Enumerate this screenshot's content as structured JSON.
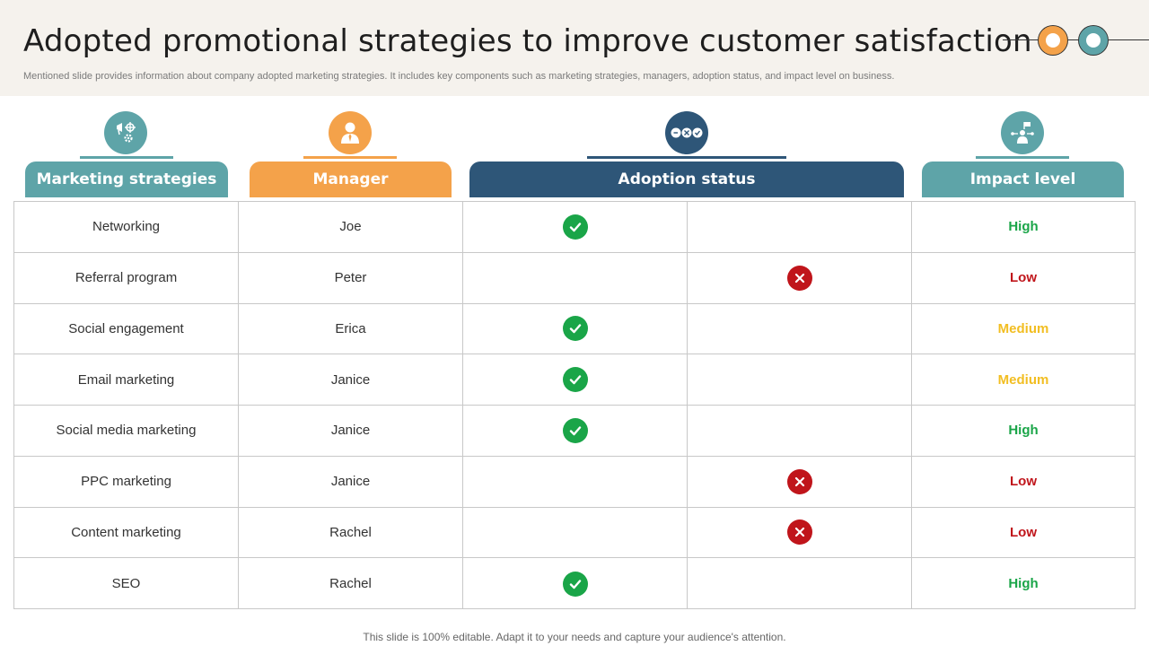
{
  "title": "Adopted promotional strategies to improve customer satisfaction",
  "subtitle": "Mentioned slide provides information about company adopted marketing strategies. It includes key components such as marketing strategies, managers, adoption status, and impact level on business.",
  "columns": {
    "strategies": "Marketing strategies",
    "manager": "Manager",
    "adoption": "Adoption status",
    "impact": "Impact level"
  },
  "colors": {
    "teal": "#5ea4a8",
    "orange": "#f4a24a",
    "navy": "#2e5678",
    "high": "#1aa548",
    "low": "#c0151b",
    "medium": "#f2be22"
  },
  "rows": [
    {
      "strategy": "Networking",
      "manager": "Joe",
      "adopted": true,
      "impact": "High"
    },
    {
      "strategy": "Referral program",
      "manager": "Peter",
      "adopted": false,
      "impact": "Low"
    },
    {
      "strategy": "Social engagement",
      "manager": "Erica",
      "adopted": true,
      "impact": "Medium"
    },
    {
      "strategy": "Email marketing",
      "manager": "Janice",
      "adopted": true,
      "impact": "Medium"
    },
    {
      "strategy": "Social media marketing",
      "manager": "Janice",
      "adopted": true,
      "impact": "High"
    },
    {
      "strategy": "PPC marketing",
      "manager": "Janice",
      "adopted": false,
      "impact": "Low"
    },
    {
      "strategy": "Content marketing",
      "manager": "Rachel",
      "adopted": false,
      "impact": "Low"
    },
    {
      "strategy": "SEO",
      "manager": "Rachel",
      "adopted": true,
      "impact": "High"
    }
  ],
  "footer": "This slide is 100% editable. Adapt it to your needs and capture your audience's attention."
}
